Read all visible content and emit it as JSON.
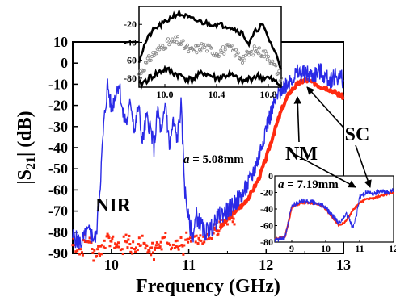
{
  "chart_data": [
    {
      "type": "line",
      "xlabel": "Frequency (GHz)",
      "ylabel": "|S21| (dB)",
      "ylabel_main": "|S",
      "ylabel_sub": "21",
      "ylabel_tail": "| (dB)",
      "xlim": [
        9.5,
        13
      ],
      "ylim": [
        -90,
        10
      ],
      "xticks": [
        10,
        11,
        12,
        13
      ],
      "yticks": [
        10,
        0,
        -10,
        -20,
        -30,
        -40,
        -50,
        -60,
        -70,
        -80,
        -90
      ],
      "annotation": {
        "var": "a",
        "rest": " = 5.08mm"
      },
      "colors": {
        "SC": "#2a2ae6",
        "NM": "#ff2a10",
        "NIR": "#3a3ad6"
      },
      "series": [
        {
          "name": "SC",
          "label": "SC",
          "x": [
            9.5,
            9.6,
            9.7,
            9.8,
            9.85,
            9.9,
            9.95,
            10.0,
            10.05,
            10.1,
            10.15,
            10.2,
            10.25,
            10.3,
            10.35,
            10.4,
            10.45,
            10.5,
            10.55,
            10.6,
            10.65,
            10.7,
            10.75,
            10.8,
            10.85,
            10.9,
            10.95,
            11.0,
            11.05,
            11.1,
            11.2,
            11.3,
            11.4,
            11.5,
            11.6,
            11.7,
            11.8,
            11.9,
            12.0,
            12.1,
            12.2,
            12.3,
            12.4,
            12.5,
            12.6,
            12.7,
            12.8,
            12.9,
            13.0
          ],
          "y": [
            -82,
            -85,
            -80,
            -83,
            -60,
            -30,
            -10,
            -22,
            -15,
            -9,
            -25,
            -28,
            -18,
            -32,
            -20,
            -38,
            -26,
            -30,
            -40,
            -22,
            -35,
            -18,
            -40,
            -28,
            -36,
            -20,
            -60,
            -75,
            -82,
            -72,
            -80,
            -78,
            -72,
            -70,
            -66,
            -62,
            -55,
            -45,
            -30,
            -20,
            -12,
            -8,
            -5,
            -5,
            -6,
            -4,
            -8,
            -6,
            -8
          ]
        },
        {
          "name": "NM",
          "label": "NM",
          "x": [
            9.5,
            9.6,
            9.7,
            9.8,
            9.9,
            10.0,
            10.1,
            10.2,
            10.3,
            10.4,
            10.5,
            10.6,
            10.7,
            10.8,
            10.9,
            11.0,
            11.1,
            11.2,
            11.3,
            11.4,
            11.5,
            11.6,
            11.7,
            11.8,
            11.9,
            12.0,
            12.1,
            12.2,
            12.3,
            12.4,
            12.5,
            12.6,
            12.7,
            12.8,
            12.9,
            13.0
          ],
          "y": [
            -86,
            -88,
            -83,
            -90,
            -85,
            -84,
            -88,
            -83,
            -87,
            -84,
            -89,
            -85,
            -83,
            -88,
            -84,
            -86,
            -82,
            -84,
            -80,
            -78,
            -74,
            -70,
            -67,
            -62,
            -55,
            -45,
            -33,
            -22,
            -14,
            -10,
            -8,
            -9,
            -11,
            -12,
            -14,
            -16
          ]
        }
      ],
      "labels": {
        "NIR": "NIR",
        "NM": "NM",
        "SC": "SC"
      }
    },
    {
      "type": "line",
      "name": "inset-top",
      "xlim": [
        9.8,
        10.9
      ],
      "ylim": [
        -90,
        0
      ],
      "xticks": [
        10.0,
        10.4,
        10.8
      ],
      "xtick_labels": [
        "10.0",
        "10.4",
        "10.8"
      ],
      "yticks": [
        -20,
        -40,
        -60,
        -80
      ],
      "series": [
        {
          "name": "upper",
          "x": [
            9.8,
            9.85,
            9.9,
            9.95,
            10.0,
            10.05,
            10.1,
            10.15,
            10.2,
            10.3,
            10.4,
            10.5,
            10.6,
            10.65,
            10.7,
            10.75,
            10.8,
            10.85,
            10.9
          ],
          "y": [
            -60,
            -40,
            -28,
            -22,
            -18,
            -12,
            -8,
            -10,
            -14,
            -18,
            -20,
            -22,
            -30,
            -42,
            -28,
            -20,
            -35,
            -50,
            -70
          ]
        },
        {
          "name": "middle",
          "x": [
            9.8,
            9.9,
            10.0,
            10.1,
            10.2,
            10.3,
            10.4,
            10.5,
            10.6,
            10.7,
            10.8,
            10.9
          ],
          "y": [
            -75,
            -55,
            -42,
            -38,
            -50,
            -44,
            -52,
            -46,
            -58,
            -48,
            -55,
            -80
          ]
        },
        {
          "name": "lower",
          "x": [
            9.8,
            9.9,
            10.0,
            10.1,
            10.2,
            10.3,
            10.4,
            10.5,
            10.6,
            10.7,
            10.8,
            10.9
          ],
          "y": [
            -88,
            -78,
            -70,
            -76,
            -82,
            -74,
            -80,
            -76,
            -84,
            -78,
            -80,
            -88
          ]
        }
      ]
    },
    {
      "type": "line",
      "name": "inset-bottom",
      "xlim": [
        8.5,
        12
      ],
      "ylim": [
        -80,
        0
      ],
      "xticks": [
        9,
        10,
        11,
        12
      ],
      "xtick_labels": [
        "9",
        "10",
        "11",
        "12"
      ],
      "yticks": [
        0,
        -20,
        -40,
        -60,
        -80
      ],
      "annotation": {
        "var": "a",
        "rest": " = 7.19mm"
      },
      "series": [
        {
          "name": "blue",
          "x": [
            8.5,
            8.8,
            9.0,
            9.3,
            9.6,
            9.9,
            10.2,
            10.4,
            10.6,
            10.8,
            10.9,
            11.0,
            11.2,
            11.4,
            11.6,
            11.8,
            12.0
          ],
          "y": [
            -78,
            -75,
            -36,
            -30,
            -32,
            -35,
            -48,
            -58,
            -45,
            -62,
            -50,
            -25,
            -20,
            -22,
            -18,
            -20,
            -17
          ]
        },
        {
          "name": "red",
          "x": [
            8.5,
            8.8,
            9.0,
            9.3,
            9.6,
            9.9,
            10.2,
            10.4,
            10.6,
            10.8,
            11.0,
            11.2,
            11.4,
            11.6,
            11.8,
            12.0
          ],
          "y": [
            -76,
            -74,
            -38,
            -32,
            -33,
            -36,
            -50,
            -60,
            -55,
            -42,
            -32,
            -28,
            -27,
            -24,
            -22,
            -20
          ]
        }
      ]
    }
  ]
}
